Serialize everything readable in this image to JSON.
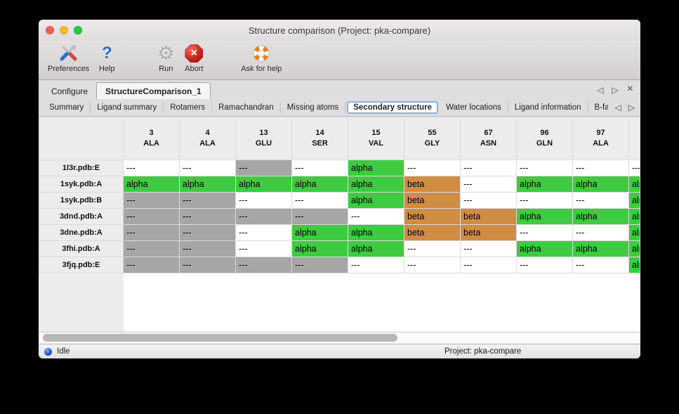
{
  "window": {
    "title": "Structure comparison (Project: pka-compare)"
  },
  "traffic_lights": {
    "close": "#fc5f57",
    "minimize": "#febc2e",
    "zoom": "#28c840"
  },
  "toolbar": {
    "buttons": [
      {
        "label": "Preferences",
        "icon": "tools-icon"
      },
      {
        "label": "Help",
        "icon": "question-mark-icon"
      },
      {
        "label": "Run",
        "icon": "gear-icon"
      },
      {
        "label": "Abort",
        "icon": "stop-icon"
      },
      {
        "label": "Ask for help",
        "icon": "lifebuoy-icon"
      }
    ]
  },
  "tabs": {
    "items": [
      {
        "label": "Configure",
        "selected": false
      },
      {
        "label": "StructureComparison_1",
        "selected": true
      }
    ],
    "nav": {
      "prev": "◁",
      "next": "▷",
      "close": "×"
    }
  },
  "subtabs": {
    "items": [
      "Summary",
      "Ligand summary",
      "Rotamers",
      "Ramachandran",
      "Missing atoms",
      "Secondary structure",
      "Water locations",
      "Ligand information",
      "B-factors"
    ],
    "selected": "Secondary structure",
    "nav": {
      "prev": "◁",
      "next": "▷"
    }
  },
  "table": {
    "columns": [
      {
        "num": "3",
        "res": "ALA"
      },
      {
        "num": "4",
        "res": "ALA"
      },
      {
        "num": "13",
        "res": "GLU"
      },
      {
        "num": "14",
        "res": "SER"
      },
      {
        "num": "15",
        "res": "VAL"
      },
      {
        "num": "55",
        "res": "GLY"
      },
      {
        "num": "67",
        "res": "ASN"
      },
      {
        "num": "96",
        "res": "GLN"
      },
      {
        "num": "97",
        "res": "ALA"
      }
    ],
    "rows": [
      {
        "label": "1l3r.pdb:E",
        "cells": [
          {
            "t": "---",
            "bg": "white"
          },
          {
            "t": "---",
            "bg": "white"
          },
          {
            "t": "---",
            "bg": "gray"
          },
          {
            "t": "---",
            "bg": "white"
          },
          {
            "t": "alpha",
            "bg": "green"
          },
          {
            "t": "---",
            "bg": "white"
          },
          {
            "t": "---",
            "bg": "white"
          },
          {
            "t": "---",
            "bg": "white"
          },
          {
            "t": "---",
            "bg": "white"
          }
        ],
        "partial": {
          "t": "---",
          "bg": "white"
        }
      },
      {
        "label": "1syk.pdb:A",
        "cells": [
          {
            "t": "alpha",
            "bg": "green"
          },
          {
            "t": "alpha",
            "bg": "green"
          },
          {
            "t": "alpha",
            "bg": "green"
          },
          {
            "t": "alpha",
            "bg": "green"
          },
          {
            "t": "alpha",
            "bg": "green"
          },
          {
            "t": "beta",
            "bg": "orange"
          },
          {
            "t": "---",
            "bg": "white"
          },
          {
            "t": "alpha",
            "bg": "green"
          },
          {
            "t": "alpha",
            "bg": "green"
          }
        ],
        "partial": {
          "t": "alpha",
          "bg": "green"
        }
      },
      {
        "label": "1syk.pdb:B",
        "cells": [
          {
            "t": "---",
            "bg": "gray"
          },
          {
            "t": "---",
            "bg": "gray"
          },
          {
            "t": "---",
            "bg": "white"
          },
          {
            "t": "---",
            "bg": "white"
          },
          {
            "t": "alpha",
            "bg": "green"
          },
          {
            "t": "beta",
            "bg": "orange"
          },
          {
            "t": "---",
            "bg": "white"
          },
          {
            "t": "---",
            "bg": "white"
          },
          {
            "t": "---",
            "bg": "white"
          }
        ],
        "partial": {
          "t": "alpha",
          "bg": "green"
        }
      },
      {
        "label": "3dnd.pdb:A",
        "cells": [
          {
            "t": "---",
            "bg": "gray"
          },
          {
            "t": "---",
            "bg": "gray"
          },
          {
            "t": "---",
            "bg": "gray"
          },
          {
            "t": "---",
            "bg": "gray"
          },
          {
            "t": "---",
            "bg": "white"
          },
          {
            "t": "beta",
            "bg": "orange"
          },
          {
            "t": "beta",
            "bg": "orange"
          },
          {
            "t": "alpha",
            "bg": "green"
          },
          {
            "t": "alpha",
            "bg": "green"
          }
        ],
        "partial": {
          "t": "alpha",
          "bg": "green"
        }
      },
      {
        "label": "3dne.pdb:A",
        "cells": [
          {
            "t": "---",
            "bg": "gray"
          },
          {
            "t": "---",
            "bg": "gray"
          },
          {
            "t": "---",
            "bg": "white"
          },
          {
            "t": "alpha",
            "bg": "green"
          },
          {
            "t": "alpha",
            "bg": "green"
          },
          {
            "t": "beta",
            "bg": "orange"
          },
          {
            "t": "beta",
            "bg": "orange"
          },
          {
            "t": "---",
            "bg": "white"
          },
          {
            "t": "---",
            "bg": "white"
          }
        ],
        "partial": {
          "t": "alpha",
          "bg": "green"
        }
      },
      {
        "label": "3fhi.pdb:A",
        "cells": [
          {
            "t": "---",
            "bg": "gray"
          },
          {
            "t": "---",
            "bg": "gray"
          },
          {
            "t": "---",
            "bg": "white"
          },
          {
            "t": "alpha",
            "bg": "green"
          },
          {
            "t": "alpha",
            "bg": "green"
          },
          {
            "t": "---",
            "bg": "white"
          },
          {
            "t": "---",
            "bg": "white"
          },
          {
            "t": "alpha",
            "bg": "green"
          },
          {
            "t": "alpha",
            "bg": "green"
          }
        ],
        "partial": {
          "t": "alpha",
          "bg": "green"
        }
      },
      {
        "label": "3fjq.pdb:E",
        "cells": [
          {
            "t": "---",
            "bg": "gray"
          },
          {
            "t": "---",
            "bg": "gray"
          },
          {
            "t": "---",
            "bg": "gray"
          },
          {
            "t": "---",
            "bg": "gray"
          },
          {
            "t": "---",
            "bg": "white"
          },
          {
            "t": "---",
            "bg": "white"
          },
          {
            "t": "---",
            "bg": "white"
          },
          {
            "t": "---",
            "bg": "white"
          },
          {
            "t": "---",
            "bg": "white"
          }
        ],
        "partial": {
          "t": "alpha",
          "bg": "green"
        }
      }
    ]
  },
  "colors": {
    "alpha_green": "#3ecb41",
    "beta_orange": "#d08c42",
    "gap_gray": "#a6a6a6",
    "cell_white": "#ffffff",
    "selected_tab_border": "#8ab0dd"
  },
  "statusbar": {
    "status": "Idle",
    "project": "Project: pka-compare"
  }
}
